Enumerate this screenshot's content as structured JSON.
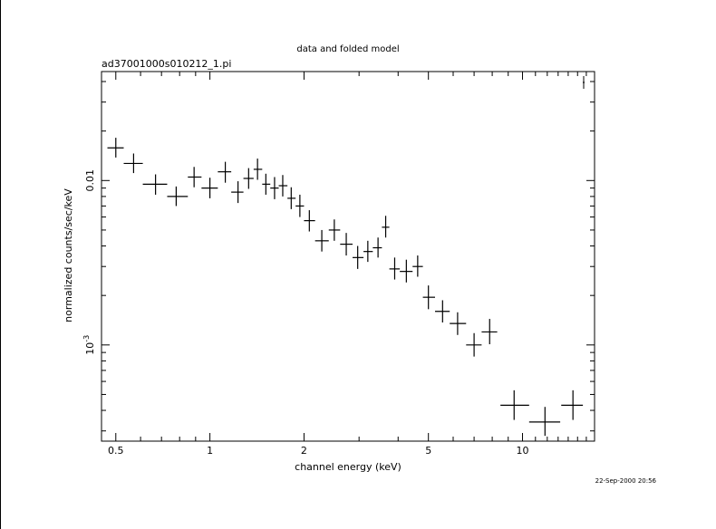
{
  "chart_data": {
    "type": "scatter",
    "title": "data and folded model",
    "subtitle": "ad37001000s010212_1.pi",
    "xlabel": "channel energy (keV)",
    "ylabel": "normalized counts/sec/keV",
    "x_scale": "log",
    "y_scale": "log",
    "xlim": [
      0.45,
      17.0
    ],
    "ylim": [
      0.00026,
      0.046
    ],
    "x_tick_labels": [
      "0.5",
      "1",
      "2",
      "5",
      "10"
    ],
    "y_tick_labels": [
      "0.01",
      "10^-3"
    ],
    "grid": false,
    "legend": "none",
    "timestamp": "22-Sep-2000 20:56",
    "series": [
      {
        "points": [
          {
            "x": 0.5,
            "y": 0.0158,
            "xlo": 0.47,
            "xhi": 0.53,
            "ylo": 0.0138,
            "yhi": 0.0182
          },
          {
            "x": 0.57,
            "y": 0.0127,
            "xlo": 0.53,
            "xhi": 0.61,
            "ylo": 0.0111,
            "yhi": 0.0146
          },
          {
            "x": 0.67,
            "y": 0.0095,
            "xlo": 0.61,
            "xhi": 0.73,
            "ylo": 0.0082,
            "yhi": 0.0109
          },
          {
            "x": 0.78,
            "y": 0.008,
            "xlo": 0.73,
            "xhi": 0.85,
            "ylo": 0.007,
            "yhi": 0.0092
          },
          {
            "x": 0.89,
            "y": 0.0105,
            "xlo": 0.85,
            "xhi": 0.94,
            "ylo": 0.0091,
            "yhi": 0.0121
          },
          {
            "x": 1.0,
            "y": 0.009,
            "xlo": 0.94,
            "xhi": 1.06,
            "ylo": 0.0078,
            "yhi": 0.0104
          },
          {
            "x": 1.12,
            "y": 0.0113,
            "xlo": 1.06,
            "xhi": 1.17,
            "ylo": 0.0097,
            "yhi": 0.013
          },
          {
            "x": 1.23,
            "y": 0.0085,
            "xlo": 1.17,
            "xhi": 1.28,
            "ylo": 0.0073,
            "yhi": 0.0099
          },
          {
            "x": 1.33,
            "y": 0.0103,
            "xlo": 1.28,
            "xhi": 1.38,
            "ylo": 0.0089,
            "yhi": 0.0119
          },
          {
            "x": 1.42,
            "y": 0.0117,
            "xlo": 1.38,
            "xhi": 1.47,
            "ylo": 0.0101,
            "yhi": 0.0136
          },
          {
            "x": 1.51,
            "y": 0.0095,
            "xlo": 1.47,
            "xhi": 1.56,
            "ylo": 0.0082,
            "yhi": 0.011
          },
          {
            "x": 1.61,
            "y": 0.009,
            "xlo": 1.56,
            "xhi": 1.66,
            "ylo": 0.0077,
            "yhi": 0.0105
          },
          {
            "x": 1.71,
            "y": 0.0093,
            "xlo": 1.66,
            "xhi": 1.77,
            "ylo": 0.008,
            "yhi": 0.0108
          },
          {
            "x": 1.82,
            "y": 0.0078,
            "xlo": 1.77,
            "xhi": 1.88,
            "ylo": 0.0067,
            "yhi": 0.0091
          },
          {
            "x": 1.94,
            "y": 0.007,
            "xlo": 1.88,
            "xhi": 2.0,
            "ylo": 0.006,
            "yhi": 0.0082
          },
          {
            "x": 2.08,
            "y": 0.0057,
            "xlo": 2.0,
            "xhi": 2.17,
            "ylo": 0.0049,
            "yhi": 0.0066
          },
          {
            "x": 2.28,
            "y": 0.0043,
            "xlo": 2.17,
            "xhi": 2.4,
            "ylo": 0.0037,
            "yhi": 0.005
          },
          {
            "x": 2.5,
            "y": 0.005,
            "xlo": 2.4,
            "xhi": 2.61,
            "ylo": 0.0043,
            "yhi": 0.0058
          },
          {
            "x": 2.73,
            "y": 0.0041,
            "xlo": 2.61,
            "xhi": 2.86,
            "ylo": 0.0035,
            "yhi": 0.0048
          },
          {
            "x": 2.97,
            "y": 0.0034,
            "xlo": 2.86,
            "xhi": 3.1,
            "ylo": 0.0029,
            "yhi": 0.004
          },
          {
            "x": 3.2,
            "y": 0.0037,
            "xlo": 3.1,
            "xhi": 3.32,
            "ylo": 0.0032,
            "yhi": 0.0043
          },
          {
            "x": 3.45,
            "y": 0.0039,
            "xlo": 3.32,
            "xhi": 3.55,
            "ylo": 0.0034,
            "yhi": 0.0045
          },
          {
            "x": 3.65,
            "y": 0.0052,
            "xlo": 3.55,
            "xhi": 3.75,
            "ylo": 0.0045,
            "yhi": 0.0061
          },
          {
            "x": 3.9,
            "y": 0.0029,
            "xlo": 3.75,
            "xhi": 4.05,
            "ylo": 0.0025,
            "yhi": 0.0034
          },
          {
            "x": 4.25,
            "y": 0.0028,
            "xlo": 4.05,
            "xhi": 4.45,
            "ylo": 0.0024,
            "yhi": 0.0033
          },
          {
            "x": 4.62,
            "y": 0.003,
            "xlo": 4.45,
            "xhi": 4.8,
            "ylo": 0.0026,
            "yhi": 0.0035
          },
          {
            "x": 5.0,
            "y": 0.00195,
            "xlo": 4.8,
            "xhi": 5.25,
            "ylo": 0.00165,
            "yhi": 0.0023
          },
          {
            "x": 5.55,
            "y": 0.0016,
            "xlo": 5.25,
            "xhi": 5.85,
            "ylo": 0.00137,
            "yhi": 0.00187
          },
          {
            "x": 6.2,
            "y": 0.00135,
            "xlo": 5.85,
            "xhi": 6.6,
            "ylo": 0.00115,
            "yhi": 0.00158
          },
          {
            "x": 7.0,
            "y": 0.001,
            "xlo": 6.6,
            "xhi": 7.4,
            "ylo": 0.00085,
            "yhi": 0.00118
          },
          {
            "x": 7.85,
            "y": 0.0012,
            "xlo": 7.4,
            "xhi": 8.3,
            "ylo": 0.00101,
            "yhi": 0.00144
          },
          {
            "x": 9.4,
            "y": 0.00043,
            "xlo": 8.5,
            "xhi": 10.5,
            "ylo": 0.00035,
            "yhi": 0.00053
          },
          {
            "x": 11.8,
            "y": 0.00034,
            "xlo": 10.5,
            "xhi": 13.2,
            "ylo": 0.00028,
            "yhi": 0.00042
          },
          {
            "x": 14.5,
            "y": 0.00043,
            "xlo": 13.3,
            "xhi": 15.6,
            "ylo": 0.00035,
            "yhi": 0.00053
          }
        ]
      }
    ]
  }
}
